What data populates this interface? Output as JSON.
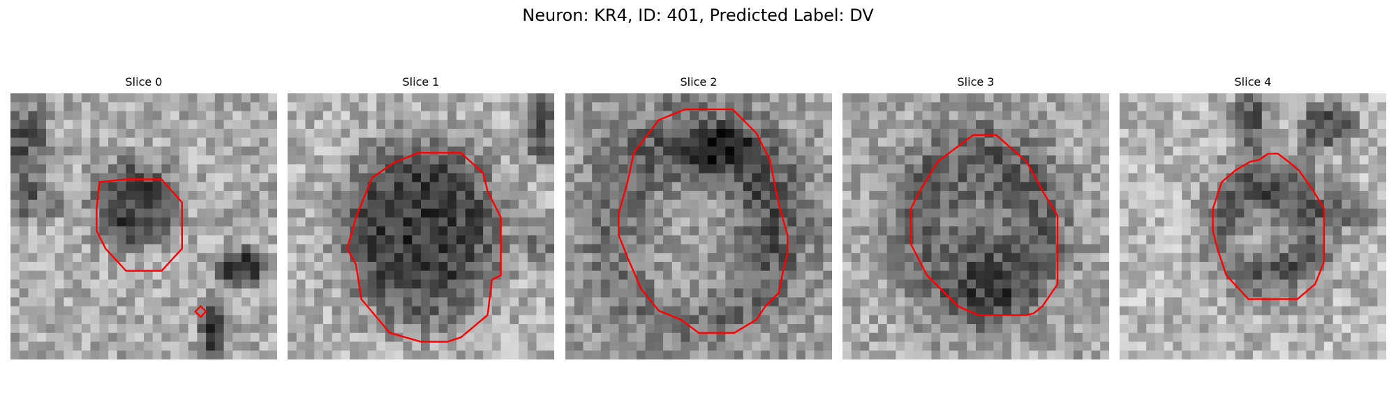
{
  "figure": {
    "title": "Neuron: KR4, ID: 401, Predicted Label: DV"
  },
  "panels": [
    {
      "title": "Slice 0"
    },
    {
      "title": "Slice 1"
    },
    {
      "title": "Slice 2"
    },
    {
      "title": "Slice 3"
    },
    {
      "title": "Slice 4"
    }
  ],
  "style": {
    "contour_color": "#ff0000",
    "colormap": "grayscale"
  }
}
